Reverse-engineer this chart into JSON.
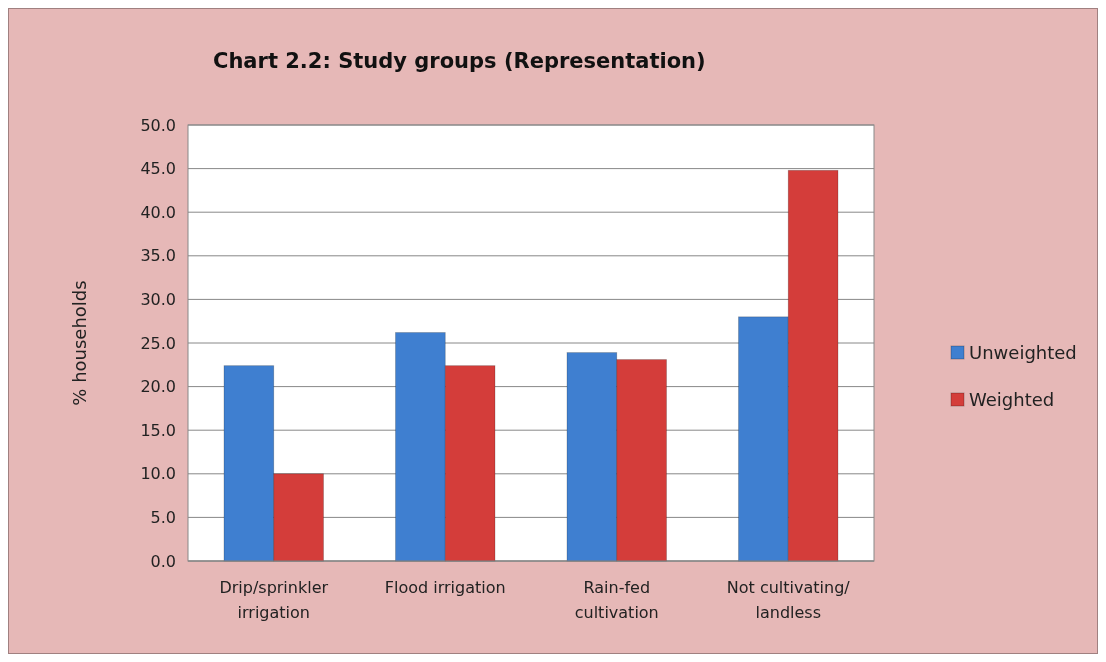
{
  "chart_data": {
    "type": "bar",
    "title": "Chart 2.2: Study groups (Representation)",
    "ylabel": "% households",
    "categories": [
      "Drip/sprinkler irrigation",
      "Flood irrigation",
      "Rain-fed cultivation",
      "Not cultivating/ landless"
    ],
    "series": [
      {
        "name": "Unweighted",
        "color": "#3f7fd0",
        "values": [
          22.4,
          26.2,
          23.9,
          28.0
        ]
      },
      {
        "name": "Weighted",
        "color": "#d43d3a",
        "values": [
          10.0,
          22.4,
          23.1,
          44.8
        ]
      }
    ],
    "ylim": [
      0,
      50
    ],
    "yticks": [
      {
        "value": 0,
        "label": "0.0"
      },
      {
        "value": 5,
        "label": "5.0"
      },
      {
        "value": 10,
        "label": "10.0"
      },
      {
        "value": 15,
        "label": "15.0"
      },
      {
        "value": 20,
        "label": "20.0"
      },
      {
        "value": 25,
        "label": "25.0"
      },
      {
        "value": 30,
        "label": "30.0"
      },
      {
        "value": 35,
        "label": "35.0"
      },
      {
        "value": 40,
        "label": "40.0"
      },
      {
        "value": 45,
        "label": "45.0"
      },
      {
        "value": 50,
        "label": "50.0"
      }
    ],
    "grid": "y",
    "legend": "right"
  }
}
